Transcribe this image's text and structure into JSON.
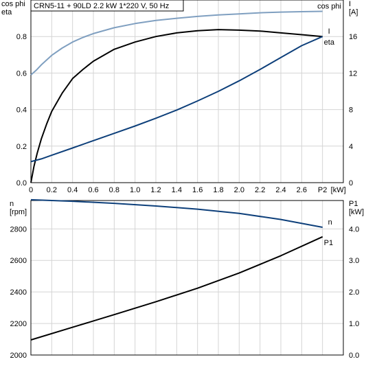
{
  "chart_data": [
    {
      "type": "line",
      "title": "CRN5-11 + 90LD   2.2 kW   1*220 V, 50 Hz",
      "xlabel": "P2 [kW]",
      "x_unit": "[kW]",
      "x_tick_labels": [
        "0",
        "0.2",
        "0.4",
        "0.6",
        "0.8",
        "1.0",
        "1.2",
        "1.4",
        "1.6",
        "1.8",
        "2.0",
        "2.2",
        "2.4",
        "2.6",
        "P2"
      ],
      "xlim": [
        0,
        3.0
      ],
      "left_axis": {
        "label_lines": [
          "cos phi",
          "eta"
        ],
        "ylim": [
          0,
          1.0
        ],
        "tick_labels": [
          "0.0",
          "0.2",
          "0.4",
          "0.6",
          "0.8"
        ]
      },
      "right_axis": {
        "label_lines": [
          "I",
          "[A]"
        ],
        "ylim": [
          0,
          20
        ],
        "tick_labels": [
          "0",
          "4",
          "8",
          "12",
          "16"
        ]
      },
      "grid": true,
      "series": [
        {
          "name": "cos phi",
          "axis": "left",
          "color": "#7f9fc0",
          "label_position": "top-right",
          "points": [
            [
              0,
              0.59
            ],
            [
              0.05,
              0.615
            ],
            [
              0.1,
              0.645
            ],
            [
              0.2,
              0.697
            ],
            [
              0.3,
              0.737
            ],
            [
              0.4,
              0.77
            ],
            [
              0.5,
              0.795
            ],
            [
              0.6,
              0.816
            ],
            [
              0.8,
              0.848
            ],
            [
              1.0,
              0.871
            ],
            [
              1.2,
              0.888
            ],
            [
              1.4,
              0.9
            ],
            [
              1.6,
              0.91
            ],
            [
              1.8,
              0.918
            ],
            [
              2.0,
              0.924
            ],
            [
              2.2,
              0.93
            ],
            [
              2.4,
              0.934
            ],
            [
              2.6,
              0.936
            ],
            [
              2.8,
              0.938
            ]
          ]
        },
        {
          "name": "eta",
          "axis": "left",
          "color": "#000000",
          "label_position": "right-below",
          "points": [
            [
              0,
              0.0
            ],
            [
              0.03,
              0.09
            ],
            [
              0.06,
              0.16
            ],
            [
              0.1,
              0.24
            ],
            [
              0.15,
              0.32
            ],
            [
              0.2,
              0.39
            ],
            [
              0.3,
              0.49
            ],
            [
              0.4,
              0.57
            ],
            [
              0.5,
              0.62
            ],
            [
              0.6,
              0.665
            ],
            [
              0.8,
              0.73
            ],
            [
              1.0,
              0.77
            ],
            [
              1.2,
              0.8
            ],
            [
              1.4,
              0.82
            ],
            [
              1.6,
              0.832
            ],
            [
              1.8,
              0.838
            ],
            [
              2.0,
              0.835
            ],
            [
              2.2,
              0.83
            ],
            [
              2.4,
              0.82
            ],
            [
              2.6,
              0.81
            ],
            [
              2.8,
              0.8
            ]
          ]
        },
        {
          "name": "I",
          "axis": "right",
          "color": "#0d3f7a",
          "label_position": "right-above",
          "points": [
            [
              0,
              2.3
            ],
            [
              0.1,
              2.6
            ],
            [
              0.2,
              3.0
            ],
            [
              0.4,
              3.8
            ],
            [
              0.6,
              4.6
            ],
            [
              0.8,
              5.4
            ],
            [
              1.0,
              6.2
            ],
            [
              1.2,
              7.05
            ],
            [
              1.4,
              7.95
            ],
            [
              1.6,
              8.95
            ],
            [
              1.8,
              10.0
            ],
            [
              2.0,
              11.15
            ],
            [
              2.2,
              12.4
            ],
            [
              2.4,
              13.7
            ],
            [
              2.6,
              15.0
            ],
            [
              2.8,
              16.0
            ]
          ]
        }
      ]
    },
    {
      "type": "line",
      "xlim": [
        0,
        3.0
      ],
      "grid": true,
      "left_axis": {
        "label_lines": [
          "n",
          "[rpm]"
        ],
        "ylim": [
          2000,
          2980
        ],
        "tick_labels": [
          "2000",
          "2200",
          "2400",
          "2600",
          "2800"
        ]
      },
      "right_axis": {
        "label_lines": [
          "P1",
          "[kW]"
        ],
        "ylim": [
          0,
          4.9
        ],
        "tick_labels": [
          "0.0",
          "1.0",
          "2.0",
          "3.0",
          "4.0"
        ]
      },
      "series": [
        {
          "name": "n",
          "axis": "left",
          "color": "#0d3f7a",
          "label_position": "right-above",
          "points": [
            [
              0,
              2985
            ],
            [
              0.4,
              2975
            ],
            [
              0.8,
              2962
            ],
            [
              1.2,
              2945
            ],
            [
              1.6,
              2925
            ],
            [
              2.0,
              2898
            ],
            [
              2.4,
              2860
            ],
            [
              2.8,
              2810
            ]
          ]
        },
        {
          "name": "P1",
          "axis": "right",
          "color": "#000000",
          "label_position": "right-below",
          "points": [
            [
              0,
              0.48
            ],
            [
              0.4,
              0.88
            ],
            [
              0.8,
              1.28
            ],
            [
              1.2,
              1.69
            ],
            [
              1.6,
              2.12
            ],
            [
              2.0,
              2.6
            ],
            [
              2.4,
              3.15
            ],
            [
              2.8,
              3.75
            ]
          ]
        }
      ]
    }
  ]
}
